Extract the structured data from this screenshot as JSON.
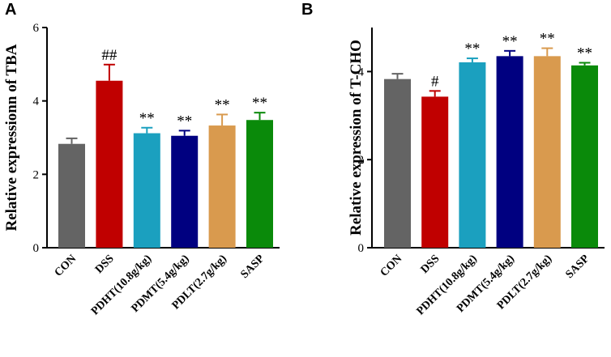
{
  "chart_data": [
    {
      "type": "bar",
      "panel": "A",
      "ylabel": "Relative expressionn of TBA",
      "ylim": [
        0,
        6
      ],
      "yticks": [
        "0",
        "2",
        "4",
        "6"
      ],
      "categories": [
        "CON",
        "DSS",
        "PDHT(10.8g/kg)",
        "PDMT(5.4g/kg)",
        "PDLT(2.7g/kg)",
        "SASP"
      ],
      "values": [
        2.83,
        4.55,
        3.12,
        3.05,
        3.33,
        3.48
      ],
      "errors": [
        0.15,
        0.44,
        0.15,
        0.14,
        0.3,
        0.2
      ],
      "significance": [
        "",
        "##",
        "**",
        "**",
        "**",
        "**"
      ],
      "colors": [
        "#646464",
        "#c00000",
        "#1ba0bf",
        "#000080",
        "#d99a4e",
        "#0a8a0a"
      ]
    },
    {
      "type": "bar",
      "panel": "B",
      "ylabel": "Relative expression of T-CHO",
      "ylim": [
        0,
        5
      ],
      "yticks": [
        "0",
        "2",
        "4"
      ],
      "categories": [
        "CON",
        "DSS",
        "PDHT(10.8g/kg)",
        "PDMT(5.4g/kg)",
        "PDLT(2.7g/kg)",
        "SASP"
      ],
      "values": [
        3.83,
        3.43,
        4.21,
        4.35,
        4.35,
        4.14
      ],
      "errors": [
        0.12,
        0.13,
        0.09,
        0.12,
        0.18,
        0.06
      ],
      "significance": [
        "",
        "#",
        "**",
        "**",
        "**",
        "**"
      ],
      "colors": [
        "#646464",
        "#c00000",
        "#1ba0bf",
        "#000080",
        "#d99a4e",
        "#0a8a0a"
      ]
    }
  ]
}
